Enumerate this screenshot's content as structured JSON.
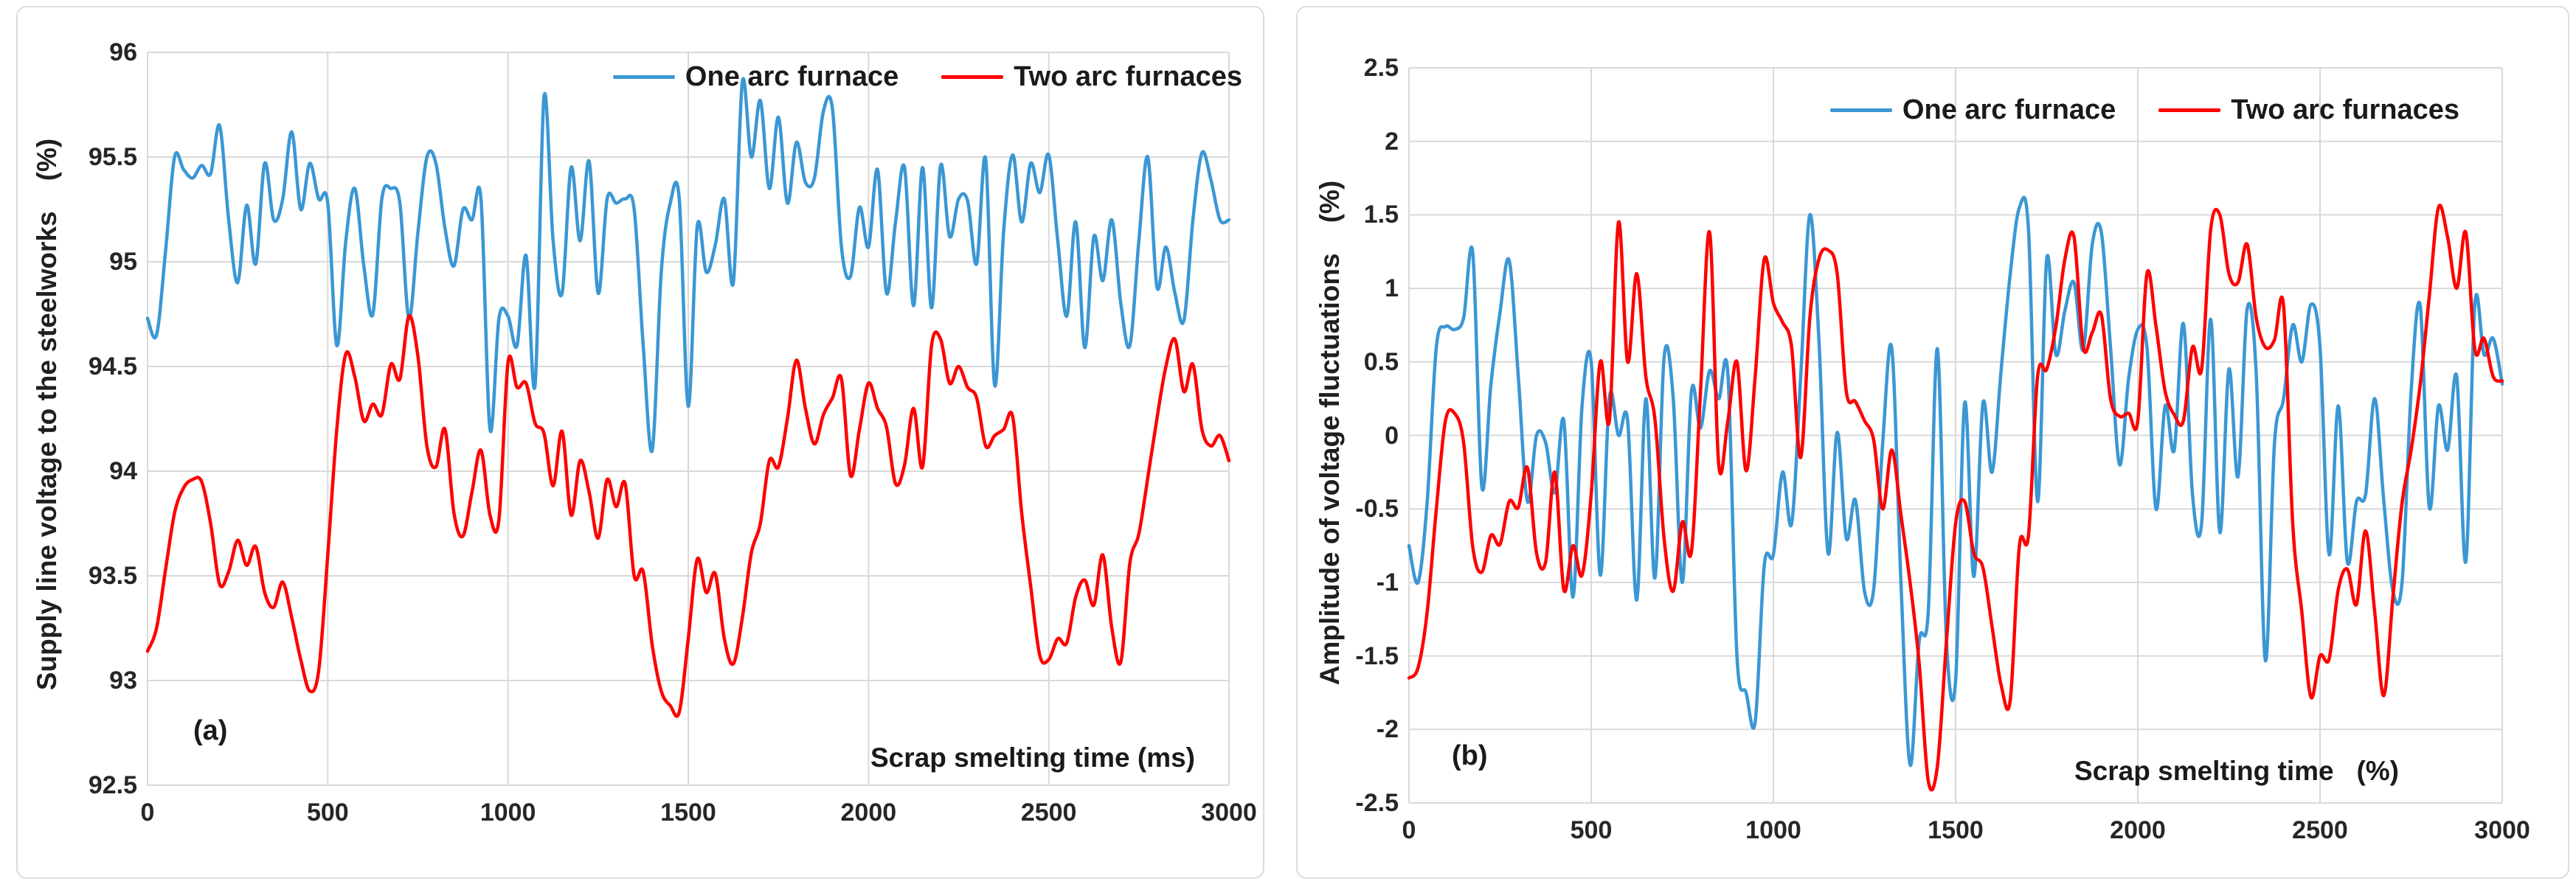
{
  "colors": {
    "series_one": "#3B97D4",
    "series_two": "#FF0000",
    "gridline": "#D9D9D9",
    "panel_border": "#DCDCDC",
    "text": "#1A1A1A"
  },
  "legend": {
    "one_label": "One arc furnace",
    "two_label": "Two arc furnaces"
  },
  "chart_data": [
    {
      "type": "line",
      "panel_label": "(a)",
      "xlabel": "Scrap smelting time (ms)",
      "ylabel": "Supply line voltage to the steelworks    (%)",
      "xlim": [
        0,
        3000
      ],
      "ylim": [
        92.5,
        96
      ],
      "x_ticks": [
        "0",
        "500",
        "1000",
        "1500",
        "2000",
        "2500",
        "3000"
      ],
      "y_ticks": [
        "96",
        "95.5",
        "95",
        "94.5",
        "94",
        "93.5",
        "93",
        "92.5"
      ],
      "grid": true,
      "legend_position": "top-right-inside",
      "series": [
        {
          "name": "One arc furnace",
          "color_key": "series_one",
          "x_start": 0,
          "x_step": 25,
          "values": [
            94.73,
            94.65,
            95.05,
            95.5,
            95.44,
            95.4,
            95.46,
            95.42,
            95.65,
            95.2,
            94.9,
            95.27,
            94.99,
            95.47,
            95.2,
            95.3,
            95.62,
            95.25,
            95.47,
            95.3,
            95.28,
            94.6,
            95.1,
            95.35,
            94.98,
            94.75,
            95.3,
            95.35,
            95.28,
            94.73,
            95.14,
            95.5,
            95.47,
            95.16,
            94.98,
            95.25,
            95.2,
            95.3,
            94.2,
            94.73,
            94.74,
            94.6,
            95.03,
            94.41,
            95.79,
            95.1,
            94.85,
            95.45,
            95.1,
            95.48,
            94.85,
            95.3,
            95.28,
            95.3,
            95.25,
            94.6,
            94.1,
            94.95,
            95.28,
            95.3,
            94.31,
            95.17,
            94.95,
            95.08,
            95.3,
            94.9,
            95.86,
            95.5,
            95.77,
            95.35,
            95.69,
            95.28,
            95.57,
            95.38,
            95.4,
            95.72,
            95.73,
            95.07,
            94.93,
            95.26,
            95.07,
            95.44,
            94.85,
            95.19,
            95.45,
            94.79,
            95.45,
            94.78,
            95.46,
            95.12,
            95.3,
            95.29,
            94.99,
            95.49,
            94.41,
            95.15,
            95.51,
            95.19,
            95.47,
            95.33,
            95.51,
            95.1,
            94.74,
            95.19,
            94.59,
            95.12,
            94.91,
            95.2,
            94.8,
            94.6,
            95.1,
            95.5,
            94.88,
            95.07,
            94.85,
            94.72,
            95.2,
            95.52,
            95.39,
            95.2,
            95.2
          ]
        },
        {
          "name": "Two arc furnaces",
          "color_key": "series_two",
          "x_start": 0,
          "x_step": 25,
          "values": [
            93.14,
            93.25,
            93.53,
            93.8,
            93.92,
            93.96,
            93.95,
            93.75,
            93.46,
            93.52,
            93.67,
            93.55,
            93.64,
            93.42,
            93.35,
            93.47,
            93.3,
            93.1,
            92.95,
            93.05,
            93.6,
            94.2,
            94.56,
            94.45,
            94.24,
            94.32,
            94.27,
            94.51,
            94.44,
            94.74,
            94.55,
            94.12,
            94.02,
            94.2,
            93.8,
            93.69,
            93.9,
            94.1,
            93.79,
            93.77,
            94.52,
            94.4,
            94.42,
            94.23,
            94.18,
            93.93,
            94.19,
            93.79,
            94.05,
            93.9,
            93.68,
            93.96,
            93.83,
            93.94,
            93.5,
            93.52,
            93.17,
            92.95,
            92.88,
            92.85,
            93.2,
            93.58,
            93.42,
            93.51,
            93.2,
            93.08,
            93.3,
            93.61,
            93.75,
            94.05,
            94.02,
            94.25,
            94.53,
            94.3,
            94.13,
            94.27,
            94.35,
            94.44,
            93.98,
            94.2,
            94.42,
            94.3,
            94.21,
            93.94,
            94.03,
            94.3,
            94.02,
            94.6,
            94.63,
            94.42,
            94.5,
            94.4,
            94.35,
            94.12,
            94.17,
            94.2,
            94.26,
            93.8,
            93.45,
            93.12,
            93.1,
            93.2,
            93.18,
            93.4,
            93.48,
            93.36,
            93.6,
            93.25,
            93.09,
            93.56,
            93.7,
            93.97,
            94.25,
            94.5,
            94.63,
            94.38,
            94.51,
            94.2,
            94.12,
            94.17,
            94.05
          ]
        }
      ]
    },
    {
      "type": "line",
      "panel_label": "(b)",
      "xlabel": "Scrap smelting time   (%)",
      "ylabel": "Amplitude of voltage fluctuations    (%)",
      "xlim": [
        0,
        3000
      ],
      "ylim": [
        -2.5,
        2.5
      ],
      "x_ticks": [
        "0",
        "500",
        "1000",
        "1500",
        "2000",
        "2500",
        "3000"
      ],
      "y_ticks": [
        "2.5",
        "2",
        "1.5",
        "1",
        "0.5",
        "0",
        "-0.5",
        "-1",
        "-1.5",
        "-2",
        "-2.5"
      ],
      "grid": true,
      "legend_position": "top-right-inside",
      "series": [
        {
          "name": "One arc furnace",
          "color_key": "series_one",
          "x_start": 0,
          "x_step": 25,
          "values": [
            -0.75,
            -1.0,
            -0.45,
            0.6,
            0.74,
            0.72,
            0.8,
            1.24,
            -0.35,
            0.35,
            0.84,
            1.19,
            0.4,
            -0.45,
            0.0,
            -0.05,
            -0.39,
            0.1,
            -1.1,
            0.2,
            0.5,
            -0.95,
            0.26,
            0.0,
            0.1,
            -1.12,
            0.25,
            -0.97,
            0.53,
            0.26,
            -1.0,
            0.3,
            0.05,
            0.44,
            0.25,
            0.42,
            -1.5,
            -1.75,
            -1.95,
            -0.88,
            -0.81,
            -0.25,
            -0.6,
            0.4,
            1.5,
            0.64,
            -0.8,
            0.02,
            -0.7,
            -0.44,
            -1.06,
            -1.05,
            -0.05,
            0.59,
            -1.0,
            -2.24,
            -1.4,
            -1.2,
            0.59,
            -1.4,
            -1.67,
            0.22,
            -0.96,
            0.22,
            -0.25,
            0.45,
            1.1,
            1.55,
            1.4,
            -0.45,
            1.2,
            0.55,
            0.85,
            1.04,
            0.58,
            1.3,
            1.38,
            0.6,
            -0.2,
            0.39,
            0.72,
            0.6,
            -0.5,
            0.2,
            -0.1,
            0.76,
            -0.4,
            -0.6,
            0.79,
            -0.66,
            0.45,
            -0.28,
            0.86,
            0.42,
            -1.53,
            -0.05,
            0.25,
            0.75,
            0.5,
            0.89,
            0.6,
            -0.81,
            0.2,
            -0.86,
            -0.45,
            -0.4,
            0.25,
            -0.45,
            -1.06,
            -1.0,
            0.3,
            0.88,
            -0.49,
            0.2,
            -0.1,
            0.4,
            -0.86,
            0.9,
            0.55,
            0.66,
            0.35
          ]
        },
        {
          "name": "Two arc furnaces",
          "color_key": "series_two",
          "x_start": 0,
          "x_step": 25,
          "values": [
            -1.65,
            -1.58,
            -1.2,
            -0.5,
            0.1,
            0.15,
            -0.05,
            -0.76,
            -0.93,
            -0.68,
            -0.74,
            -0.45,
            -0.49,
            -0.22,
            -0.8,
            -0.86,
            -0.25,
            -1.05,
            -0.75,
            -0.95,
            -0.4,
            0.5,
            0.1,
            1.45,
            0.5,
            1.1,
            0.4,
            0.11,
            -0.7,
            -1.06,
            -0.59,
            -0.79,
            0.3,
            1.38,
            -0.2,
            0.1,
            0.5,
            -0.24,
            0.4,
            1.2,
            0.9,
            0.77,
            0.6,
            -0.15,
            0.8,
            1.2,
            1.26,
            1.1,
            0.3,
            0.23,
            0.1,
            -0.03,
            -0.5,
            -0.1,
            -0.54,
            -1.0,
            -1.55,
            -2.35,
            -2.25,
            -1.4,
            -0.6,
            -0.45,
            -0.8,
            -0.9,
            -1.3,
            -1.7,
            -1.8,
            -0.75,
            -0.68,
            0.4,
            0.45,
            0.74,
            1.2,
            1.35,
            0.6,
            0.7,
            0.82,
            0.25,
            0.13,
            0.15,
            0.1,
            1.1,
            0.74,
            0.3,
            0.14,
            0.1,
            0.6,
            0.45,
            1.4,
            1.5,
            1.1,
            1.04,
            1.3,
            0.8,
            0.6,
            0.65,
            0.88,
            -0.6,
            -1.2,
            -1.78,
            -1.5,
            -1.52,
            -1.05,
            -0.91,
            -1.15,
            -0.65,
            -1.2,
            -1.77,
            -1.1,
            -0.46,
            -0.1,
            0.35,
            0.95,
            1.55,
            1.35,
            1.0,
            1.38,
            0.58,
            0.66,
            0.4,
            0.37
          ]
        }
      ]
    }
  ]
}
